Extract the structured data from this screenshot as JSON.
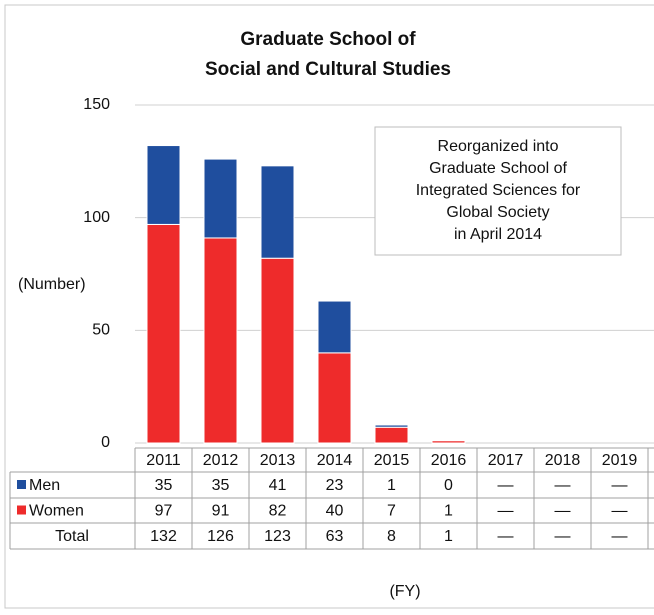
{
  "chart_data": {
    "type": "stacked_bar",
    "title": [
      "Graduate School of",
      "Social and Cultural Studies"
    ],
    "y_label": "(Number)",
    "x_label": "(FY)",
    "annotation": [
      "Reorganized into",
      "Graduate School of",
      "Integrated Sciences for",
      "Global Society",
      "in April 2014"
    ],
    "categories": [
      "2011",
      "2012",
      "2013",
      "2014",
      "2015",
      "2016",
      "2017",
      "2018",
      "2019"
    ],
    "series": [
      {
        "name": "Men",
        "color": "#1f4e9e",
        "values": [
          35,
          35,
          41,
          23,
          1,
          0,
          null,
          null,
          null
        ],
        "value_labels": [
          "35",
          "35",
          "41",
          "23",
          "1",
          "0",
          "—",
          "—",
          "—"
        ]
      },
      {
        "name": "Women",
        "color": "#ee2b2b",
        "values": [
          97,
          91,
          82,
          40,
          7,
          1,
          null,
          null,
          null
        ],
        "value_labels": [
          "97",
          "91",
          "82",
          "40",
          "7",
          "1",
          "—",
          "—",
          "—"
        ]
      }
    ],
    "totals": {
      "name": "Total",
      "values": [
        132,
        126,
        123,
        63,
        8,
        1,
        null,
        null,
        null
      ],
      "value_labels": [
        "132",
        "126",
        "123",
        "63",
        "8",
        "1",
        "—",
        "—",
        "—"
      ]
    },
    "stack_order": [
      "Women",
      "Men"
    ],
    "ylim": [
      0,
      150
    ],
    "yticks": [
      0,
      50,
      100,
      150
    ],
    "grid": true
  }
}
